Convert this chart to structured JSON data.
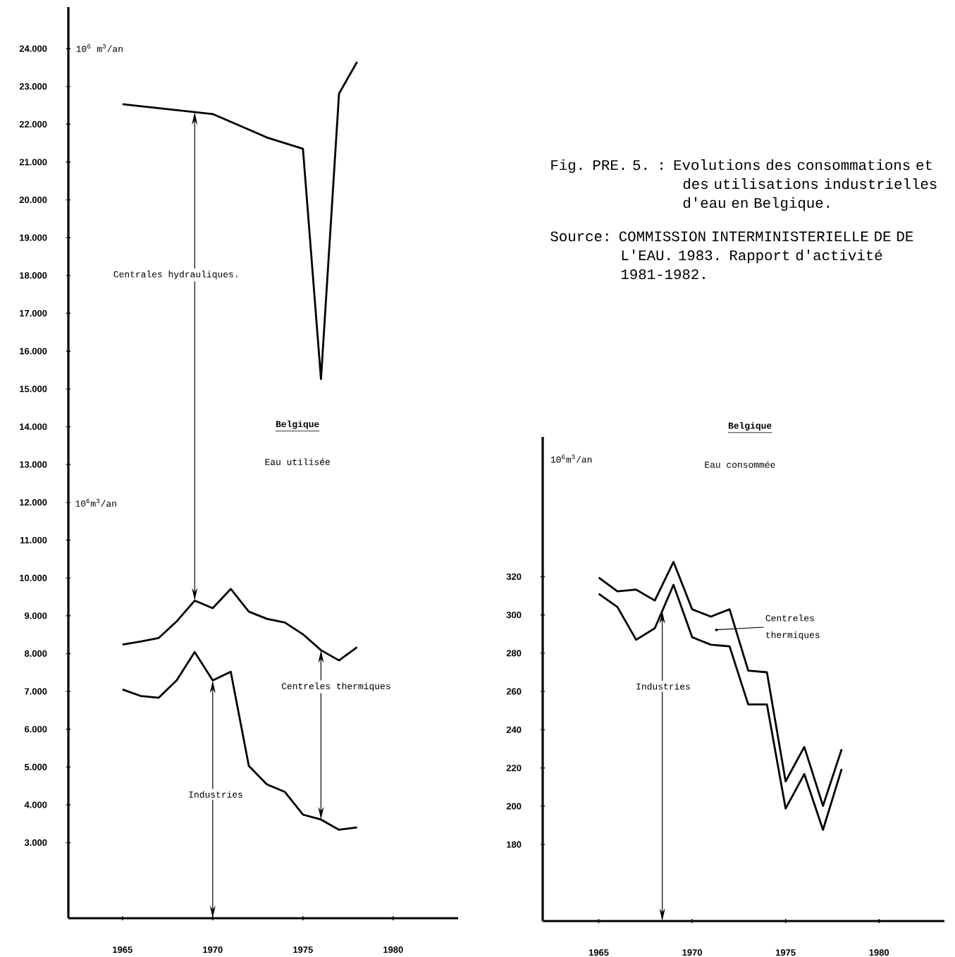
{
  "chart_data": [
    {
      "type": "line",
      "x": [
        1965,
        1966,
        1967,
        1968,
        1969,
        1970,
        1971,
        1972,
        1973,
        1974,
        1975,
        1976,
        1977,
        1978
      ],
      "series": [
        {
          "color": "#000000",
          "x": [
            1965,
            1970,
            1973,
            1975,
            1976,
            1977,
            1978
          ],
          "values": [
            22530,
            22270,
            21650,
            21350,
            15260,
            22810,
            23650
          ]
        },
        {
          "color": "#000000",
          "values": [
            8240,
            8320,
            8410,
            8850,
            9400,
            9200,
            9710,
            9110,
            8920,
            8820,
            8510,
            8090,
            7820,
            8170
          ]
        },
        {
          "color": "#000000",
          "values": [
            7050,
            6880,
            6830,
            7290,
            8040,
            7290,
            7520,
            5030,
            4540,
            4340,
            3740,
            3610,
            3340,
            3400
          ]
        }
      ],
      "xlim": [
        1962,
        1983.6
      ],
      "ylim": [
        1000,
        25100
      ],
      "xticks": [
        1965,
        1970,
        1975,
        1980
      ],
      "yticks": [
        {
          "value": 3000,
          "label": "3.000"
        },
        {
          "value": 4000,
          "label": "4.000"
        },
        {
          "value": 5000,
          "label": "5.000"
        },
        {
          "value": 6000,
          "label": "6.000"
        },
        {
          "value": 7000,
          "label": "7.000"
        },
        {
          "value": 8000,
          "label": "8.000"
        },
        {
          "value": 9000,
          "label": "9.000"
        },
        {
          "value": 10000,
          "label": "10.000"
        },
        {
          "value": 11000,
          "label": "11.000"
        },
        {
          "value": 12000,
          "label": "12.000"
        },
        {
          "value": 13000,
          "label": "13.000"
        },
        {
          "value": 14000,
          "label": "14.000"
        },
        {
          "value": 15000,
          "label": "15.000"
        },
        {
          "value": 16000,
          "label": "16.000"
        },
        {
          "value": 17000,
          "label": "17.000"
        },
        {
          "value": 18000,
          "label": "18.000"
        },
        {
          "value": 19000,
          "label": "19.000"
        },
        {
          "value": 20000,
          "label": "20.000"
        },
        {
          "value": 21000,
          "label": "21.000"
        },
        {
          "value": 22000,
          "label": "22.000"
        },
        {
          "value": 23000,
          "label": "23.000"
        },
        {
          "value": 24000,
          "label": "24.000"
        }
      ],
      "ylabel": "10$^{6}$ m$^{3}$/an",
      "annotations": [
        "Centrales hydrauliques.",
        "Belgique",
        "Eau utilisée",
        "10$^{6}$m$^{3}$/an",
        "Centreles thermiques",
        "Industries"
      ]
    },
    {
      "type": "line",
      "title": "Fig. PRE. 5. : Evolutions des consommations et des utilisations industrielles d'eau en Belgique.",
      "x": [
        1965,
        1966,
        1967,
        1968,
        1969,
        1970,
        1971,
        1972,
        1973,
        1974,
        1975,
        1976,
        1977,
        1978
      ],
      "series": [
        {
          "color": "#000000",
          "values": [
            319.5,
            312.3,
            313.2,
            307.5,
            327.7,
            302.9,
            299.1,
            302.9,
            270.9,
            270.0,
            213.0,
            231.0,
            200.2,
            229.8
          ]
        },
        {
          "color": "#000000",
          "values": [
            311.0,
            304.1,
            287.0,
            293.0,
            315.7,
            288.3,
            284.4,
            283.6,
            253.2,
            253.2,
            198.8,
            216.8,
            187.7,
            219.5
          ]
        }
      ],
      "xlim": [
        1962,
        1983.5
      ],
      "ylim": [
        140,
        393
      ],
      "xticks": [
        1965,
        1970,
        1975,
        1980
      ],
      "yticks": [
        180,
        200,
        220,
        240,
        260,
        280,
        300,
        320
      ],
      "ylabel": "10$^{6}$m$^{3}$/an",
      "annotations": [
        "Source: COMMISSION INTERMINISTERIELLE DE DE L'EAU. 1983. Rapport d'activité 1981-1982.",
        "Belgique",
        "Eau consommée",
        "Centreles thermiques",
        "Industries"
      ]
    }
  ]
}
